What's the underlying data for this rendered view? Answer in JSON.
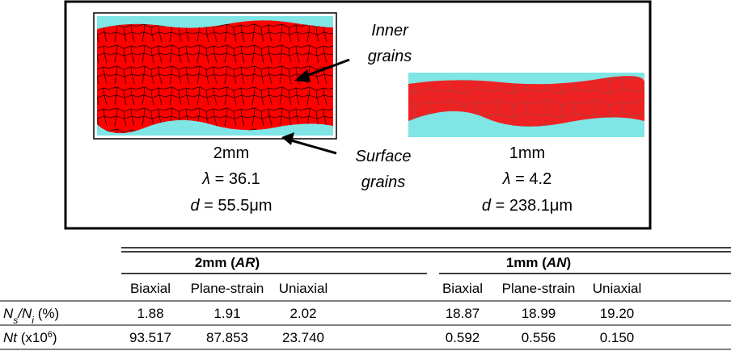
{
  "figure": {
    "inner_label": [
      "Inner",
      "grains"
    ],
    "surface_label": [
      "Surface",
      "grains"
    ],
    "specimens": [
      {
        "size": "2mm",
        "lambda_symbol": "λ",
        "lambda_value": " = 36.1",
        "d_symbol": "d",
        "d_value": " = 55.5μm"
      },
      {
        "size": "1mm",
        "lambda_symbol": "λ",
        "lambda_value": " = 4.2",
        "d_symbol": "d",
        "d_value": " = 238.1μm"
      }
    ]
  },
  "table": {
    "groups": [
      [
        {
          "text": "2mm ("
        },
        {
          "text": "AR",
          "style": "i"
        },
        {
          "text": ")"
        }
      ],
      [
        {
          "text": "1mm ("
        },
        {
          "text": "AN",
          "style": "i"
        },
        {
          "text": ")"
        }
      ]
    ],
    "columns": [
      "Biaxial",
      "Plane-strain",
      "Uniaxial",
      "Biaxial",
      "Plane-strain",
      "Uniaxial"
    ],
    "row_labels": [
      [
        {
          "text": "N",
          "style": "i"
        },
        {
          "text": "s",
          "style": "isub"
        },
        {
          "text": "/",
          "style": "i"
        },
        {
          "text": "N",
          "style": "i"
        },
        {
          "text": "i",
          "style": "isub"
        },
        {
          "text": " (%)"
        }
      ],
      [
        {
          "text": "Nt",
          "style": "i"
        },
        {
          "text": " (x10"
        },
        {
          "text": "6",
          "style": "sup"
        },
        {
          "text": ")"
        }
      ]
    ],
    "rows": [
      [
        "1.88",
        "1.91",
        "2.02",
        "18.87",
        "18.99",
        "19.20"
      ],
      [
        "93.517",
        "87.853",
        "23.740",
        "0.592",
        "0.556",
        "0.150"
      ]
    ]
  }
}
